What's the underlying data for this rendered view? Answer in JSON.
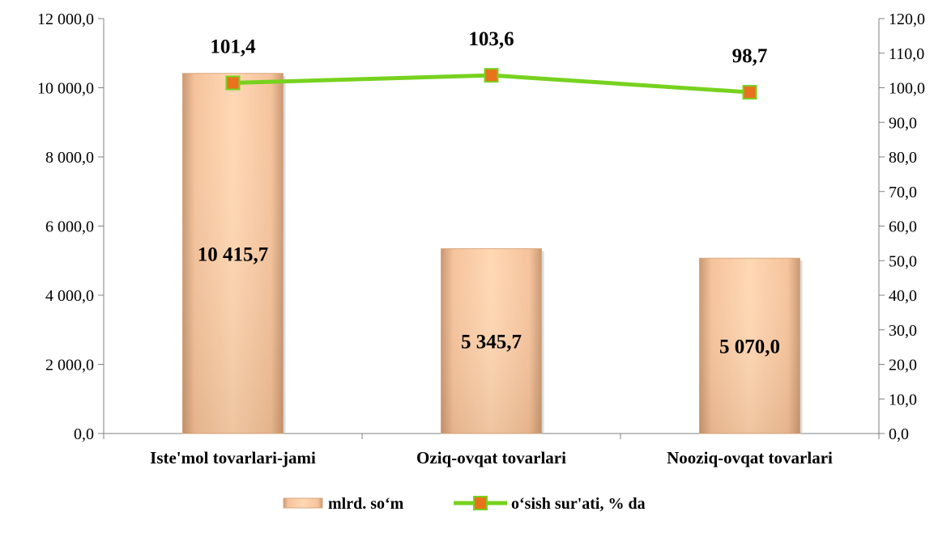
{
  "chart_data": {
    "type": "bar",
    "categories": [
      "Iste'mol tovarlari-jami",
      "Oziq-ovqat tovarlari",
      "Nooziq-ovqat tovarlari"
    ],
    "series": [
      {
        "name": "mlrd. so‘m",
        "type": "bar",
        "axis": "left",
        "values": [
          10415.7,
          5345.7,
          5070.0
        ],
        "labels": [
          "10 415,7",
          "5 345,7",
          "5 070,0"
        ],
        "color": "#F8C49A"
      },
      {
        "name": "o‘sish sur'ati, % da",
        "type": "line",
        "axis": "right",
        "values": [
          101.4,
          103.6,
          98.7
        ],
        "labels": [
          "101,4",
          "103,6",
          "98,7"
        ],
        "color": "#77D21E",
        "marker_color": "#E8731C"
      }
    ],
    "y_left": {
      "ylim": [
        0,
        12000
      ],
      "ticks": [
        0,
        2000,
        4000,
        6000,
        8000,
        10000,
        12000
      ],
      "tick_labels": [
        "0,0",
        "2 000,0",
        "4 000,0",
        "6 000,0",
        "8 000,0",
        "10 000,0",
        "12 000,0"
      ]
    },
    "y_right": {
      "ylim": [
        0,
        120
      ],
      "ticks": [
        0,
        10,
        20,
        30,
        40,
        50,
        60,
        70,
        80,
        90,
        100,
        110,
        120
      ],
      "tick_labels": [
        "0,0",
        "10,0",
        "20,0",
        "30,0",
        "40,0",
        "50,0",
        "60,0",
        "70,0",
        "80,0",
        "90,0",
        "100,0",
        "110,0",
        "120,0"
      ]
    },
    "title": "",
    "xlabel": "",
    "ylabel": "",
    "grid": false,
    "legend": "bottom"
  }
}
